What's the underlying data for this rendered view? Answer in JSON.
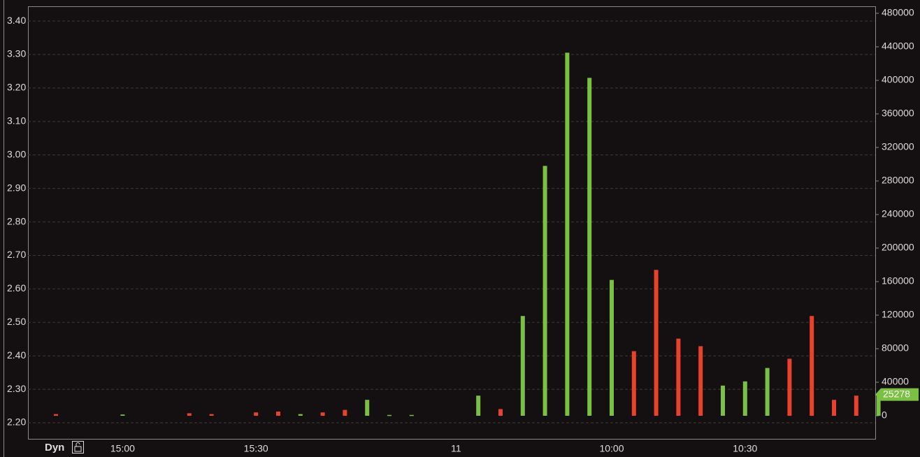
{
  "chart_data": {
    "type": "bar",
    "mode_label": "Dyn",
    "categories": [
      null,
      null,
      null,
      "15:00",
      null,
      null,
      null,
      null,
      null,
      "15:30",
      null,
      null,
      null,
      null,
      null,
      null,
      null,
      null,
      "11",
      null,
      null,
      null,
      null,
      null,
      null,
      "10:00",
      null,
      null,
      null,
      null,
      null,
      "10:30",
      null,
      null,
      null,
      null,
      null,
      null
    ],
    "values": [
      2000,
      null,
      null,
      1500,
      null,
      null,
      3000,
      2000,
      null,
      4000,
      5000,
      2000,
      4000,
      7000,
      19000,
      1000,
      1000,
      null,
      null,
      24000,
      8000,
      119000,
      298000,
      433000,
      403000,
      162000,
      77000,
      174000,
      92000,
      83000,
      36000,
      41000,
      57000,
      68000,
      119000,
      19000,
      24000,
      25278
    ],
    "colors": [
      "#e8412c",
      null,
      null,
      "#7ac143",
      null,
      null,
      "#e8412c",
      "#e8412c",
      null,
      "#e8412c",
      "#e8412c",
      "#7ac143",
      "#e8412c",
      "#e8412c",
      "#7ac143",
      "#7ac143",
      "#7ac143",
      null,
      null,
      "#7ac143",
      "#e8412c",
      "#7ac143",
      "#7ac143",
      "#7ac143",
      "#7ac143",
      "#7ac143",
      "#e8412c",
      "#e8412c",
      "#e8412c",
      "#e8412c",
      "#7ac143",
      "#7ac143",
      "#7ac143",
      "#e8412c",
      "#e8412c",
      "#e8412c",
      "#e8412c",
      "#7ac143"
    ],
    "ylim": [
      2.152,
      3.442
    ],
    "yticks": [
      {
        "value": 2.2,
        "label": "2.20"
      },
      {
        "value": 2.3,
        "label": "2.30"
      },
      {
        "value": 2.4,
        "label": "2.40"
      },
      {
        "value": 2.5,
        "label": "2.50"
      },
      {
        "value": 2.6,
        "label": "2.60"
      },
      {
        "value": 2.7,
        "label": "2.70"
      },
      {
        "value": 2.8,
        "label": "2.80"
      },
      {
        "value": 2.9,
        "label": "2.90"
      },
      {
        "value": 3.0,
        "label": "3.00"
      },
      {
        "value": 3.1,
        "label": "3.10"
      },
      {
        "value": 3.2,
        "label": "3.20"
      },
      {
        "value": 3.3,
        "label": "3.30"
      },
      {
        "value": 3.4,
        "label": "3.40"
      }
    ],
    "y2lim": [
      -27500,
      487500
    ],
    "y2ticks": [
      0,
      40000,
      80000,
      120000,
      160000,
      200000,
      240000,
      280000,
      320000,
      360000,
      400000,
      440000,
      480000
    ],
    "grid": true,
    "background": "#141012"
  }
}
